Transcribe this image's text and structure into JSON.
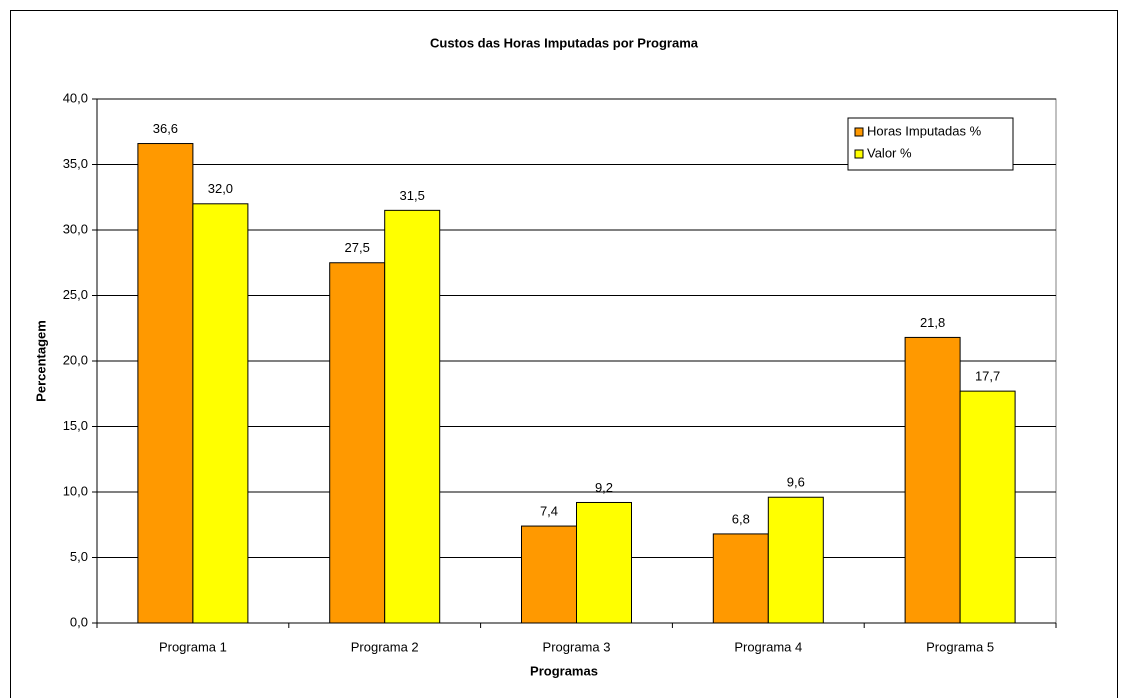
{
  "chart_data": {
    "type": "bar",
    "title": "Custos das Horas Imputadas por Programa",
    "x_label": "Programas",
    "y_label": "Percentagem",
    "categories": [
      "Programa 1",
      "Programa 2",
      "Programa 3",
      "Programa 4",
      "Programa 5"
    ],
    "series": [
      {
        "name": "Horas Imputadas %",
        "color": "#ff9900",
        "values": [
          36.6,
          27.5,
          7.4,
          6.8,
          21.8
        ],
        "value_labels": [
          "36,6",
          "27,5",
          "7,4",
          "6,8",
          "21,8"
        ]
      },
      {
        "name": "Valor %",
        "color": "#ffff00",
        "values": [
          32.0,
          31.5,
          9.2,
          9.6,
          17.7
        ],
        "value_labels": [
          "32,0",
          "31,5",
          "9,2",
          "9,6",
          "17,7"
        ]
      }
    ],
    "ylim": [
      0,
      40
    ],
    "yticks": [
      {
        "value": 0,
        "label": "0,0"
      },
      {
        "value": 5,
        "label": "5,0"
      },
      {
        "value": 10,
        "label": "10,0"
      },
      {
        "value": 15,
        "label": "15,0"
      },
      {
        "value": 20,
        "label": "20,0"
      },
      {
        "value": 25,
        "label": "25,0"
      },
      {
        "value": 30,
        "label": "30,0"
      },
      {
        "value": 35,
        "label": "35,0"
      },
      {
        "value": 40,
        "label": "40,0"
      }
    ],
    "grid": true,
    "legend": "upper right"
  }
}
